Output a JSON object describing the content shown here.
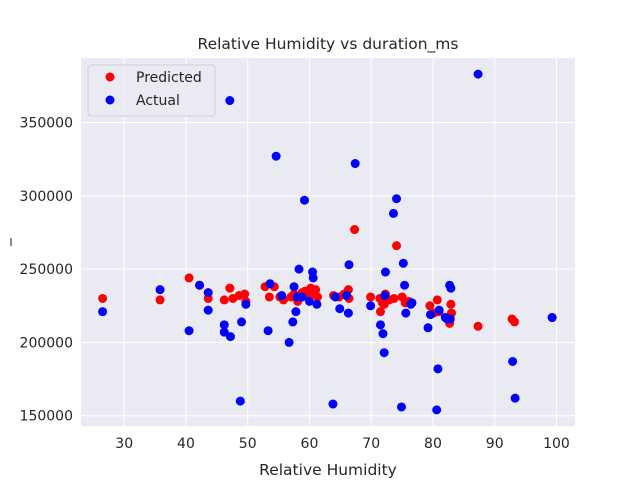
{
  "chart_data": {
    "type": "scatter",
    "title": "Relative Humidity vs duration_ms",
    "xlabel": "Relative Humidity",
    "ylabel": "_",
    "xlim": [
      23,
      103
    ],
    "ylim": [
      143000,
      394000
    ],
    "xticks": [
      30,
      40,
      50,
      60,
      70,
      80,
      90,
      100
    ],
    "yticks": [
      150000,
      200000,
      250000,
      300000,
      350000
    ],
    "grid": true,
    "legend_position": "top-left",
    "background": "#eaeaf2",
    "series": [
      {
        "name": "Predicted",
        "color": "#ff0000",
        "points": [
          [
            26.5,
            230000
          ],
          [
            35.8,
            229000
          ],
          [
            40.5,
            244000
          ],
          [
            42.2,
            239000
          ],
          [
            43.6,
            230000
          ],
          [
            46.2,
            229000
          ],
          [
            47.1,
            237000
          ],
          [
            47.6,
            230000
          ],
          [
            48.6,
            232000
          ],
          [
            49.5,
            233000
          ],
          [
            49.7,
            228000
          ],
          [
            52.8,
            238000
          ],
          [
            53.5,
            231000
          ],
          [
            54.3,
            238000
          ],
          [
            55.2,
            231000
          ],
          [
            55.8,
            229000
          ],
          [
            57.0,
            231000
          ],
          [
            57.5,
            233000
          ],
          [
            58.1,
            228000
          ],
          [
            58.8,
            234000
          ],
          [
            59.3,
            235000
          ],
          [
            59.8,
            232000
          ],
          [
            60.2,
            237000
          ],
          [
            60.5,
            233000
          ],
          [
            61.0,
            236000
          ],
          [
            61.3,
            231000
          ],
          [
            63.9,
            232000
          ],
          [
            64.8,
            231000
          ],
          [
            65.6,
            233000
          ],
          [
            66.3,
            236000
          ],
          [
            66.4,
            230000
          ],
          [
            67.3,
            277000
          ],
          [
            69.9,
            231000
          ],
          [
            71.4,
            230000
          ],
          [
            71.5,
            221000
          ],
          [
            71.8,
            227000
          ],
          [
            72.1,
            226000
          ],
          [
            72.3,
            233000
          ],
          [
            72.9,
            229000
          ],
          [
            73.7,
            230000
          ],
          [
            74.1,
            266000
          ],
          [
            75.0,
            231000
          ],
          [
            75.5,
            227000
          ],
          [
            76.1,
            228000
          ],
          [
            79.5,
            225000
          ],
          [
            80.1,
            220000
          ],
          [
            80.7,
            229000
          ],
          [
            81.0,
            221000
          ],
          [
            82.7,
            213000
          ],
          [
            82.9,
            226000
          ],
          [
            83.0,
            220000
          ],
          [
            87.3,
            211000
          ],
          [
            92.8,
            216000
          ],
          [
            93.2,
            214000
          ],
          [
            99.3,
            217000
          ]
        ]
      },
      {
        "name": "Actual",
        "color": "#0000ff",
        "points": [
          [
            26.5,
            221000
          ],
          [
            35.8,
            236000
          ],
          [
            40.5,
            208000
          ],
          [
            42.2,
            239000
          ],
          [
            43.6,
            222000
          ],
          [
            43.6,
            234000
          ],
          [
            46.2,
            212000
          ],
          [
            46.2,
            207000
          ],
          [
            47.1,
            365000
          ],
          [
            47.2,
            204000
          ],
          [
            48.8,
            160000
          ],
          [
            49.0,
            214000
          ],
          [
            49.7,
            226000
          ],
          [
            53.3,
            208000
          ],
          [
            53.6,
            240000
          ],
          [
            54.6,
            327000
          ],
          [
            55.5,
            232000
          ],
          [
            56.7,
            200000
          ],
          [
            57.3,
            214000
          ],
          [
            57.5,
            238000
          ],
          [
            57.8,
            221000
          ],
          [
            58.0,
            231000
          ],
          [
            58.3,
            250000
          ],
          [
            58.8,
            231000
          ],
          [
            59.2,
            297000
          ],
          [
            60.0,
            228000
          ],
          [
            60.5,
            248000
          ],
          [
            60.6,
            244000
          ],
          [
            61.2,
            226000
          ],
          [
            63.8,
            158000
          ],
          [
            64.2,
            231000
          ],
          [
            64.9,
            223000
          ],
          [
            66.0,
            232000
          ],
          [
            66.3,
            220000
          ],
          [
            66.4,
            253000
          ],
          [
            67.4,
            322000
          ],
          [
            69.9,
            225000
          ],
          [
            71.5,
            212000
          ],
          [
            71.9,
            206000
          ],
          [
            72.1,
            193000
          ],
          [
            72.2,
            232000
          ],
          [
            72.3,
            248000
          ],
          [
            73.6,
            288000
          ],
          [
            74.1,
            298000
          ],
          [
            74.9,
            156000
          ],
          [
            75.2,
            254000
          ],
          [
            75.4,
            239000
          ],
          [
            75.6,
            220000
          ],
          [
            76.4,
            226000
          ],
          [
            76.6,
            227000
          ],
          [
            79.2,
            210000
          ],
          [
            79.6,
            219000
          ],
          [
            80.6,
            154000
          ],
          [
            80.8,
            182000
          ],
          [
            81.0,
            222000
          ],
          [
            82.0,
            217000
          ],
          [
            82.3,
            216000
          ],
          [
            82.7,
            239000
          ],
          [
            82.9,
            237000
          ],
          [
            82.8,
            216000
          ],
          [
            87.3,
            383000
          ],
          [
            92.9,
            187000
          ],
          [
            93.3,
            162000
          ],
          [
            99.3,
            217000
          ]
        ]
      }
    ]
  }
}
